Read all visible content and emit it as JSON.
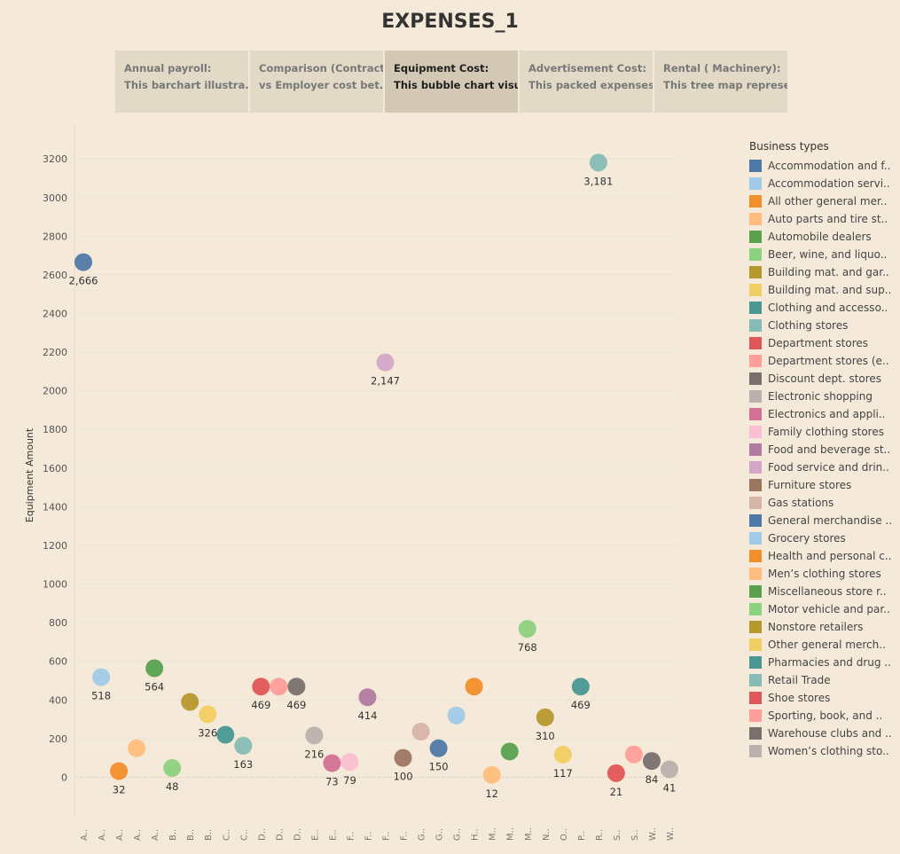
{
  "title": "EXPENSES_1",
  "tabs": [
    {
      "line1": "Annual payroll:",
      "line2": "This barchart illustra..",
      "active": false
    },
    {
      "line1": "Comparison (Contract",
      "line2": "vs Employer cost bet..",
      "active": false
    },
    {
      "line1": "Equipment Cost:",
      "line2": "This bubble chart visu..",
      "active": true
    },
    {
      "line1": "Advertisement Cost:",
      "line2": "This packed expenses..",
      "active": false
    },
    {
      "line1": "Rental ( Machinery):",
      "line2": "This tree map represe..",
      "active": false
    }
  ],
  "legend": {
    "title": "Business types",
    "items": [
      {
        "label": "Accommodation and f..",
        "color": "#4e79a7"
      },
      {
        "label": "Accommodation servi..",
        "color": "#a0cbe8"
      },
      {
        "label": "All other general mer..",
        "color": "#f28e2b"
      },
      {
        "label": "Auto parts and tire st..",
        "color": "#ffbe7d"
      },
      {
        "label": "Automobile dealers",
        "color": "#59a14f"
      },
      {
        "label": "Beer, wine, and liquo..",
        "color": "#8cd17d"
      },
      {
        "label": "Building mat. and gar..",
        "color": "#b6992d"
      },
      {
        "label": "Building mat. and sup..",
        "color": "#f1ce63"
      },
      {
        "label": "Clothing and accesso..",
        "color": "#499894"
      },
      {
        "label": "Clothing stores",
        "color": "#86bcb6"
      },
      {
        "label": "Department stores",
        "color": "#e15759"
      },
      {
        "label": "Department stores (e..",
        "color": "#ff9d9a"
      },
      {
        "label": "Discount dept. stores",
        "color": "#79706e"
      },
      {
        "label": "Electronic shopping",
        "color": "#bab0ac"
      },
      {
        "label": "Electronics and appli..",
        "color": "#d37295"
      },
      {
        "label": "Family clothing stores",
        "color": "#fabfd2"
      },
      {
        "label": "Food and beverage st..",
        "color": "#b07aa1"
      },
      {
        "label": "Food service and drin..",
        "color": "#d4a6c8"
      },
      {
        "label": "Furniture stores",
        "color": "#9d7660"
      },
      {
        "label": "Gas stations",
        "color": "#d7b5a6"
      },
      {
        "label": "General merchandise ..",
        "color": "#4e79a7"
      },
      {
        "label": "Grocery stores",
        "color": "#a0cbe8"
      },
      {
        "label": "Health and personal c..",
        "color": "#f28e2b"
      },
      {
        "label": "Men’s clothing stores",
        "color": "#ffbe7d"
      },
      {
        "label": "Miscellaneous store r..",
        "color": "#59a14f"
      },
      {
        "label": "Motor vehicle and par..",
        "color": "#8cd17d"
      },
      {
        "label": "Nonstore retailers",
        "color": "#b6992d"
      },
      {
        "label": "Other general merch..",
        "color": "#f1ce63"
      },
      {
        "label": "Pharmacies and drug ..",
        "color": "#499894"
      },
      {
        "label": "Retail Trade",
        "color": "#86bcb6"
      },
      {
        "label": "Shoe stores",
        "color": "#e15759"
      },
      {
        "label": "Sporting, book, and ..",
        "color": "#ff9d9a"
      },
      {
        "label": "Warehouse clubs and ..",
        "color": "#79706e"
      },
      {
        "label": "Women’s clothing sto..",
        "color": "#bab0ac"
      }
    ]
  },
  "chart_data": {
    "type": "scatter",
    "ylabel": "Equipment Amount",
    "xlabel": "",
    "ylim": [
      -200,
      3380
    ],
    "yticks": [
      0,
      200,
      400,
      600,
      800,
      1000,
      1200,
      1400,
      1600,
      1800,
      2000,
      2200,
      2400,
      2600,
      2800,
      3000,
      3200
    ],
    "grid": true,
    "categories": [
      "A..",
      "A..",
      "A..",
      "A..",
      "A..",
      "B..",
      "B..",
      "B..",
      "C..",
      "C..",
      "D..",
      "D..",
      "D..",
      "E..",
      "E..",
      "F..",
      "F..",
      "F..",
      "F..",
      "G..",
      "G..",
      "G..",
      "H..",
      "M..",
      "M..",
      "M..",
      "N..",
      "O..",
      "P..",
      "R..",
      "S..",
      "S..",
      "W..",
      "W.."
    ],
    "values": [
      2666,
      518,
      32,
      150,
      564,
      48,
      390,
      326,
      220,
      163,
      469,
      469,
      469,
      216,
      73,
      79,
      414,
      2147,
      100,
      236,
      150,
      320,
      469,
      12,
      133,
      768,
      310,
      117,
      469,
      3181,
      21,
      118,
      84,
      41
    ],
    "data_labels": [
      "2,666",
      "518",
      "32",
      "",
      "564",
      "48",
      "",
      "326",
      "",
      "163",
      "469",
      "",
      "469",
      "216",
      "73",
      "79",
      "414",
      "2,147",
      "100",
      "",
      "150",
      "",
      "",
      "12",
      "",
      "768",
      "310",
      "117",
      "469",
      "3,181",
      "21",
      "",
      "84",
      "41"
    ]
  }
}
